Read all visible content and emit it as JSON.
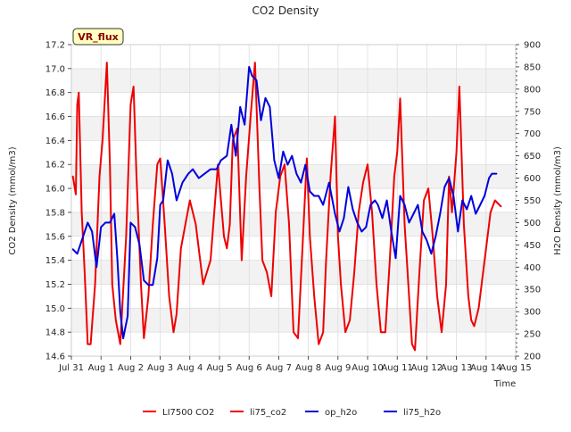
{
  "chart_data": {
    "type": "line",
    "title": "CO2 Density",
    "xlabel": "Time",
    "ylabel_left": "CO2 Density (mmol/m3)",
    "ylabel_right": "H2O Density (mmol/m3)",
    "badge": "VR_flux",
    "x_ticks": [
      "Jul 31",
      "Aug 1",
      "Aug 2",
      "Aug 3",
      "Aug 4",
      "Aug 5",
      "Aug 6",
      "Aug 7",
      "Aug 8",
      "Aug 9",
      "Aug 10",
      "Aug 11",
      "Aug 12",
      "Aug 13",
      "Aug 14",
      "Aug 15"
    ],
    "xlim": [
      0,
      15
    ],
    "ylim_left": [
      14.6,
      17.2
    ],
    "y_ticks_left": [
      "14.6",
      "14.8",
      "15.0",
      "15.2",
      "15.4",
      "15.6",
      "15.8",
      "16.0",
      "16.2",
      "16.4",
      "16.6",
      "16.8",
      "17.0",
      "17.2"
    ],
    "ylim_right": [
      200,
      900
    ],
    "y_ticks_right": [
      "200",
      "250",
      "300",
      "350",
      "400",
      "450",
      "500",
      "550",
      "600",
      "650",
      "700",
      "750",
      "800",
      "850",
      "900"
    ],
    "legend_position": "bottom",
    "grid": true,
    "series": [
      {
        "name": "LI7500 CO2",
        "axis": "left",
        "color": "#ff0000",
        "x": [],
        "y": []
      },
      {
        "name": "li75_co2",
        "axis": "left",
        "color": "#ee0000",
        "x": [
          0.05,
          0.15,
          0.2,
          0.25,
          0.35,
          0.45,
          0.55,
          0.65,
          0.8,
          0.95,
          1.05,
          1.2,
          1.3,
          1.38,
          1.5,
          1.65,
          1.85,
          2.0,
          2.1,
          2.2,
          2.35,
          2.45,
          2.6,
          2.75,
          2.9,
          3.0,
          3.15,
          3.3,
          3.45,
          3.55,
          3.7,
          3.85,
          4.0,
          4.2,
          4.45,
          4.7,
          4.95,
          5.15,
          5.25,
          5.35,
          5.45,
          5.6,
          5.75,
          5.9,
          6.05,
          6.2,
          6.35,
          6.45,
          6.6,
          6.75,
          6.9,
          7.05,
          7.2,
          7.35,
          7.5,
          7.65,
          7.8,
          7.95,
          8.05,
          8.2,
          8.35,
          8.5,
          8.6,
          8.75,
          8.9,
          9.0,
          9.1,
          9.25,
          9.4,
          9.55,
          9.7,
          9.85,
          10.0,
          10.15,
          10.3,
          10.45,
          10.6,
          10.75,
          10.9,
          11.0,
          11.1,
          11.25,
          11.4,
          11.5,
          11.6,
          11.75,
          11.9,
          12.05,
          12.2,
          12.35,
          12.5,
          12.65,
          12.75,
          12.85,
          13.0,
          13.1,
          13.25,
          13.4,
          13.5,
          13.6,
          13.75,
          13.9,
          14.05,
          14.15,
          14.3,
          14.5
        ],
        "y": [
          16.1,
          15.95,
          16.7,
          16.8,
          15.8,
          15.3,
          14.7,
          14.7,
          15.2,
          16.1,
          16.4,
          17.05,
          16.2,
          15.2,
          14.9,
          14.7,
          15.6,
          16.7,
          16.85,
          16.1,
          15.2,
          14.75,
          15.1,
          15.7,
          16.2,
          16.25,
          15.7,
          15.1,
          14.8,
          14.95,
          15.5,
          15.7,
          15.9,
          15.7,
          15.2,
          15.4,
          16.2,
          15.6,
          15.5,
          15.7,
          16.4,
          16.5,
          15.4,
          16.1,
          16.6,
          17.05,
          16.0,
          15.4,
          15.3,
          15.1,
          15.8,
          16.1,
          16.2,
          15.7,
          14.8,
          14.75,
          15.5,
          16.25,
          15.6,
          15.1,
          14.7,
          14.8,
          15.4,
          16.1,
          16.6,
          15.6,
          15.2,
          14.8,
          14.9,
          15.3,
          15.8,
          16.05,
          16.2,
          15.8,
          15.2,
          14.8,
          14.8,
          15.4,
          16.1,
          16.3,
          16.75,
          15.7,
          15.1,
          14.7,
          14.65,
          15.3,
          15.9,
          16.0,
          15.6,
          15.1,
          14.8,
          15.2,
          16.1,
          15.8,
          16.3,
          16.85,
          15.7,
          15.1,
          14.9,
          14.85,
          15.0,
          15.3,
          15.6,
          15.8,
          15.9,
          15.85
        ]
      },
      {
        "name": "op_h2o",
        "axis": "right",
        "color": "#0000cc",
        "x": [],
        "y": []
      },
      {
        "name": "li75_h2o",
        "axis": "right",
        "color": "#0000dd",
        "x": [
          0.05,
          0.2,
          0.4,
          0.55,
          0.7,
          0.85,
          1.0,
          1.15,
          1.3,
          1.45,
          1.55,
          1.65,
          1.75,
          1.9,
          2.0,
          2.15,
          2.3,
          2.45,
          2.6,
          2.75,
          2.9,
          3.0,
          3.1,
          3.25,
          3.4,
          3.55,
          3.75,
          3.95,
          4.1,
          4.3,
          4.5,
          4.7,
          4.9,
          5.05,
          5.25,
          5.4,
          5.55,
          5.7,
          5.85,
          6.0,
          6.1,
          6.25,
          6.4,
          6.55,
          6.7,
          6.85,
          7.0,
          7.15,
          7.3,
          7.45,
          7.6,
          7.75,
          7.9,
          8.05,
          8.2,
          8.35,
          8.5,
          8.7,
          8.9,
          9.05,
          9.2,
          9.35,
          9.5,
          9.65,
          9.8,
          9.95,
          10.1,
          10.25,
          10.35,
          10.5,
          10.65,
          10.8,
          10.95,
          11.1,
          11.25,
          11.4,
          11.55,
          11.7,
          11.85,
          12.0,
          12.15,
          12.3,
          12.45,
          12.6,
          12.75,
          12.9,
          13.05,
          13.2,
          13.35,
          13.5,
          13.65,
          13.8,
          13.95,
          14.1,
          14.2,
          14.35
        ],
        "y": [
          440,
          430,
          470,
          500,
          480,
          400,
          490,
          500,
          500,
          520,
          420,
          300,
          240,
          290,
          500,
          490,
          450,
          370,
          360,
          360,
          420,
          540,
          550,
          640,
          610,
          550,
          590,
          610,
          620,
          600,
          610,
          620,
          620,
          640,
          650,
          720,
          650,
          760,
          720,
          850,
          830,
          820,
          730,
          780,
          760,
          640,
          600,
          660,
          630,
          650,
          610,
          590,
          630,
          570,
          560,
          560,
          540,
          590,
          520,
          480,
          510,
          580,
          530,
          500,
          480,
          490,
          540,
          550,
          540,
          510,
          550,
          480,
          420,
          560,
          540,
          500,
          520,
          540,
          480,
          460,
          430,
          470,
          520,
          580,
          600,
          560,
          480,
          550,
          530,
          560,
          520,
          540,
          560,
          600,
          610,
          610
        ]
      }
    ]
  }
}
